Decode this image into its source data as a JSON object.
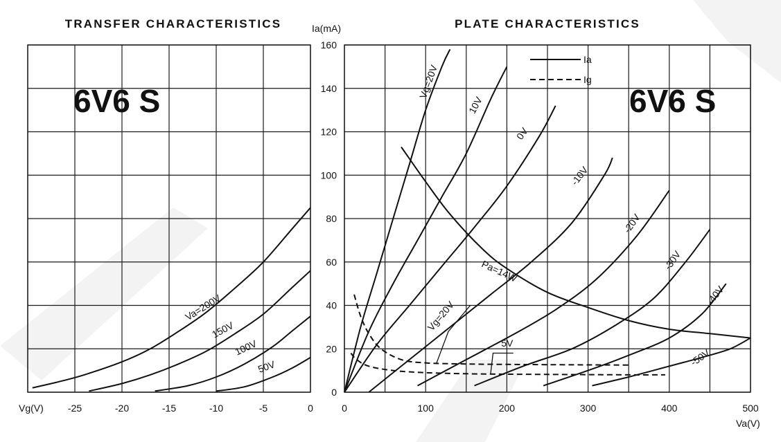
{
  "chart_data": [
    {
      "type": "line",
      "title": "TRANSFER CHARACTERISTICS",
      "badge": "6V6 S",
      "xlabel": "Vg(V)",
      "ylabel": "",
      "xlim": [
        -30,
        0
      ],
      "ylim": [
        0,
        160
      ],
      "x_ticks": [
        -25,
        -20,
        -15,
        -10,
        -5,
        0
      ],
      "x_tick_labels": [
        "-25",
        "-20",
        "-15",
        "-10",
        "-5",
        "0"
      ],
      "grid": true,
      "series": [
        {
          "name": "Va=200V",
          "x": [
            -29.5,
            -27,
            -24,
            -20,
            -17,
            -14,
            -11,
            -8,
            -5,
            -2,
            0
          ],
          "y": [
            2,
            4.5,
            8,
            14,
            20,
            28,
            37,
            48,
            60,
            75,
            85
          ]
        },
        {
          "name": "150V",
          "x": [
            -23.5,
            -20,
            -17,
            -14,
            -11,
            -8,
            -5,
            -2,
            0
          ],
          "y": [
            0.5,
            4,
            8,
            13,
            19,
            27,
            36,
            48,
            56
          ]
        },
        {
          "name": "100V",
          "x": [
            -16.5,
            -13,
            -10,
            -7,
            -4,
            -2,
            0
          ],
          "y": [
            0.5,
            3,
            7,
            13,
            21,
            28,
            35
          ]
        },
        {
          "name": "50V",
          "x": [
            -10,
            -7,
            -4,
            -2,
            0
          ],
          "y": [
            0.5,
            2.5,
            7,
            11,
            16
          ]
        }
      ]
    },
    {
      "type": "line",
      "title": "PLATE CHARACTERISTICS",
      "badge": "6V6 S",
      "xlabel": "Va(V)",
      "ylabel": "Ia(mA)",
      "xlim": [
        0,
        500
      ],
      "ylim": [
        0,
        160
      ],
      "x_ticks": [
        0,
        100,
        200,
        300,
        400,
        500
      ],
      "y_ticks": [
        0,
        20,
        40,
        60,
        80,
        100,
        120,
        140,
        160
      ],
      "legend": [
        {
          "label": "Ia",
          "style": "solid"
        },
        {
          "label": "Ig",
          "style": "dashed"
        }
      ],
      "legend_position": "top",
      "grid": true,
      "series": [
        {
          "name": "Vg=20V",
          "style": "solid",
          "x": [
            0,
            20,
            40,
            60,
            80,
            100,
            120,
            130
          ],
          "y": [
            0,
            30,
            55,
            80,
            105,
            130,
            150,
            158
          ]
        },
        {
          "name": "10V",
          "style": "solid",
          "x": [
            0,
            30,
            60,
            90,
            120,
            150,
            180,
            200
          ],
          "y": [
            0,
            28,
            50,
            70,
            90,
            110,
            135,
            150
          ]
        },
        {
          "name": "0V",
          "style": "solid",
          "x": [
            0,
            40,
            80,
            120,
            160,
            200,
            240,
            260
          ],
          "y": [
            0,
            22,
            40,
            58,
            76,
            95,
            118,
            132
          ]
        },
        {
          "name": "-10V",
          "style": "solid",
          "x": [
            30,
            80,
            130,
            180,
            230,
            280,
            320,
            330
          ],
          "y": [
            0,
            15,
            30,
            45,
            60,
            78,
            100,
            108
          ]
        },
        {
          "name": "-20V",
          "style": "solid",
          "x": [
            90,
            150,
            210,
            260,
            310,
            360,
            400
          ],
          "y": [
            3,
            15,
            27,
            38,
            52,
            72,
            93
          ]
        },
        {
          "name": "-30V",
          "style": "solid",
          "x": [
            160,
            220,
            280,
            330,
            380,
            420,
            450
          ],
          "y": [
            3,
            12,
            20,
            30,
            43,
            60,
            75
          ]
        },
        {
          "name": "-40V",
          "style": "solid",
          "x": [
            245,
            300,
            350,
            400,
            440,
            470
          ],
          "y": [
            3,
            10,
            17,
            25,
            36,
            50
          ]
        },
        {
          "name": "-50V",
          "style": "solid",
          "x": [
            305,
            350,
            400,
            440,
            475,
            500
          ],
          "y": [
            3,
            7,
            12,
            16,
            20,
            25
          ]
        },
        {
          "name": "Pa=14W",
          "style": "solid",
          "x": [
            70,
            100,
            130,
            170,
            200,
            250,
            300,
            350,
            400,
            450,
            500
          ],
          "y": [
            113,
            97,
            82,
            66,
            57,
            46,
            39,
            33,
            29,
            27,
            25
          ]
        },
        {
          "name": "Vg=20V",
          "style": "dashed",
          "x": [
            12,
            20,
            30,
            45,
            70,
            100,
            150,
            200,
            250,
            300,
            350
          ],
          "y": [
            45,
            35,
            27,
            20,
            15,
            13.5,
            13,
            12.8,
            12.7,
            12.6,
            12.5
          ]
        },
        {
          "name": "5V",
          "style": "dashed",
          "x": [
            8,
            15,
            30,
            60,
            100,
            150,
            200,
            250,
            300,
            350,
            395
          ],
          "y": [
            18,
            15,
            12,
            10,
            9,
            8.5,
            8.3,
            8.2,
            8.1,
            8,
            8
          ]
        }
      ]
    }
  ]
}
